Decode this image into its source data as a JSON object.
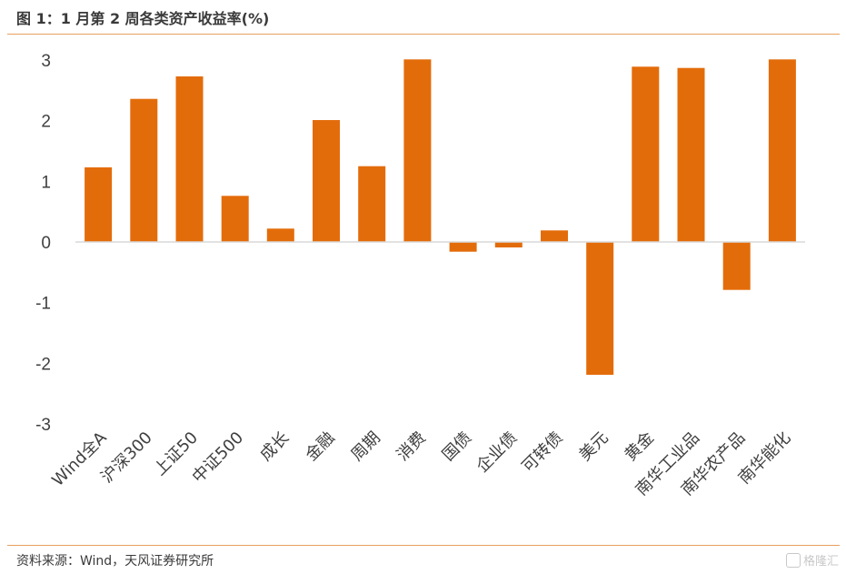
{
  "header": {
    "title": "图 1：1 月第 2 周各类资产收益率(%)"
  },
  "footer": {
    "source": "资料来源：Wind，天风证券研究所",
    "watermark": "格隆汇"
  },
  "colors": {
    "bar": "#E36C0A",
    "axis": "#d9d9d9",
    "rule": "#e8a060"
  },
  "chart_data": {
    "type": "bar",
    "title": "图 1：1 月第 2 周各类资产收益率(%)",
    "categories": [
      "Wind全A",
      "沪深300",
      "上证50",
      "中证500",
      "成长",
      "金融",
      "周期",
      "消费",
      "国债",
      "企业债",
      "可转债",
      "美元",
      "黄金",
      "南华工业品",
      "南华农产品",
      "南华能化"
    ],
    "values": [
      1.23,
      2.36,
      2.73,
      0.76,
      0.22,
      2.01,
      1.25,
      3.01,
      -0.16,
      -0.09,
      0.19,
      -2.19,
      2.89,
      2.87,
      -0.79,
      3.01
    ],
    "yticks": [
      3,
      2,
      1,
      0,
      -1,
      -2,
      -3
    ],
    "ylim": [
      -3,
      3
    ],
    "xlabel": "",
    "ylabel": "",
    "grid": false,
    "legend": "none"
  }
}
